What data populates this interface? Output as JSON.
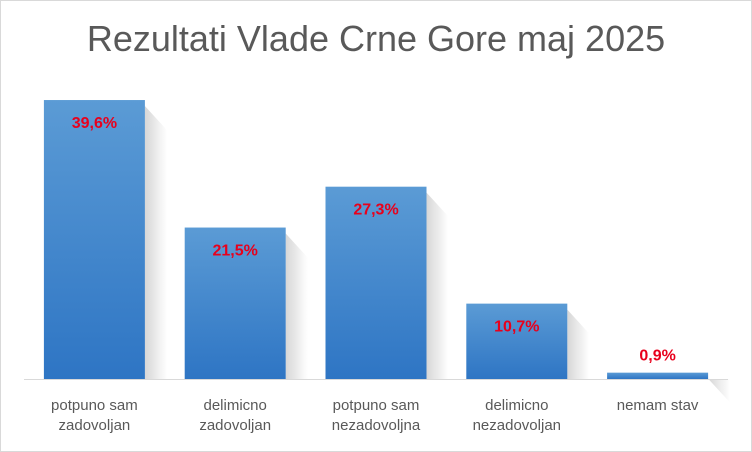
{
  "chart_data": {
    "type": "bar",
    "title": "Rezultati Vlade Crne Gore maj 2025",
    "categories": [
      [
        "potpuno sam",
        "zadovoljan"
      ],
      [
        "delimicno",
        "zadovoljan"
      ],
      [
        "potpuno sam",
        "nezadovoljna"
      ],
      [
        "delimicno",
        "nezadovoljan"
      ],
      [
        "nemam stav"
      ]
    ],
    "values": [
      39.6,
      21.5,
      27.3,
      10.7,
      0.9
    ],
    "data_labels": [
      "39,6%",
      "21,5%",
      "27,3%",
      "10,7%",
      "0,9%"
    ],
    "ylim": [
      0,
      45
    ],
    "grid": false,
    "legend": "none",
    "colors": {
      "bar_top": "#5b9bd5",
      "bar_bottom": "#2e75c4",
      "data_label": "#e8001c",
      "axis_text": "#595959"
    }
  }
}
